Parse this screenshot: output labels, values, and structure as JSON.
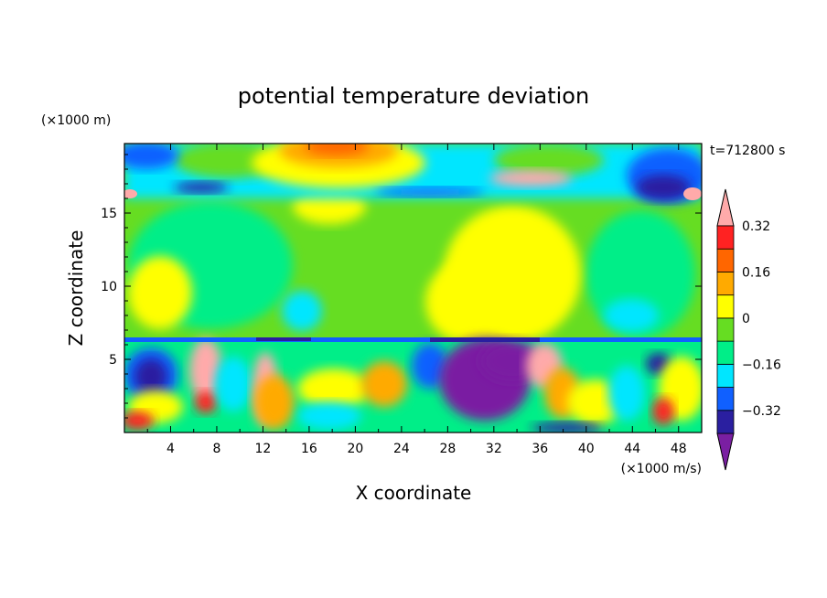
{
  "chart_data": {
    "type": "heatmap",
    "title": "potential temperature deviation",
    "xlabel": "X coordinate",
    "ylabel": "Z coordinate",
    "x_unit": "(×1000 m/s)",
    "y_unit": "(×1000 m)",
    "time_label": "t=712800 s",
    "xlim": [
      0,
      50
    ],
    "ylim": [
      0,
      19.75
    ],
    "x_ticks": [
      4,
      8,
      12,
      16,
      20,
      24,
      28,
      32,
      36,
      40,
      44,
      48
    ],
    "y_ticks": [
      5,
      10,
      15
    ],
    "colorbar": {
      "levels": [
        -0.4,
        -0.32,
        -0.24,
        -0.16,
        -0.08,
        0,
        0.08,
        0.16,
        0.24,
        0.32,
        0.4
      ],
      "tick_labels": [
        "0.32",
        "0.16",
        "0",
        "−0.16",
        "−0.32"
      ],
      "tick_values": [
        0.32,
        0.16,
        0,
        -0.16,
        -0.32
      ],
      "colors": [
        "#7a1fa2",
        "#2a1fa0",
        "#1060ff",
        "#00e6ff",
        "#00ee88",
        "#66dd22",
        "#ffff00",
        "#ffaa00",
        "#ff6600",
        "#ff2222",
        "#ffaaaa"
      ]
    },
    "regions": [
      {
        "x": [
          0,
          50
        ],
        "z": [
          6.4,
          19.75
        ],
        "value": 0.04
      },
      {
        "x": [
          0,
          50
        ],
        "z": [
          17.2,
          19.75
        ],
        "value": -0.06
      },
      {
        "x": [
          0,
          4
        ],
        "z": [
          18.4,
          19.75
        ],
        "value": -0.22
      },
      {
        "x": [
          14,
          24
        ],
        "z": [
          17.8,
          19.75
        ],
        "value": 0.26
      },
      {
        "x": [
          44,
          50
        ],
        "z": [
          17.0,
          19.75
        ],
        "value": -0.3
      },
      {
        "x": [
          23,
          38
        ],
        "z": [
          6.4,
          15.5
        ],
        "value": 0.14
      },
      {
        "x": [
          31,
          38
        ],
        "z": [
          6.4,
          14
        ],
        "value": 0.17
      },
      {
        "x": [
          0,
          8
        ],
        "z": [
          6.4,
          12
        ],
        "value": 0.1
      },
      {
        "x": [
          2,
          12
        ],
        "z": [
          5,
          6.4
        ],
        "value": -0.24
      },
      {
        "x": [
          28,
          36
        ],
        "z": [
          0.8,
          6.4
        ],
        "value": -0.37
      },
      {
        "x": [
          0,
          50
        ],
        "z": [
          0,
          6.4
        ],
        "value": 0.02
      }
    ]
  }
}
